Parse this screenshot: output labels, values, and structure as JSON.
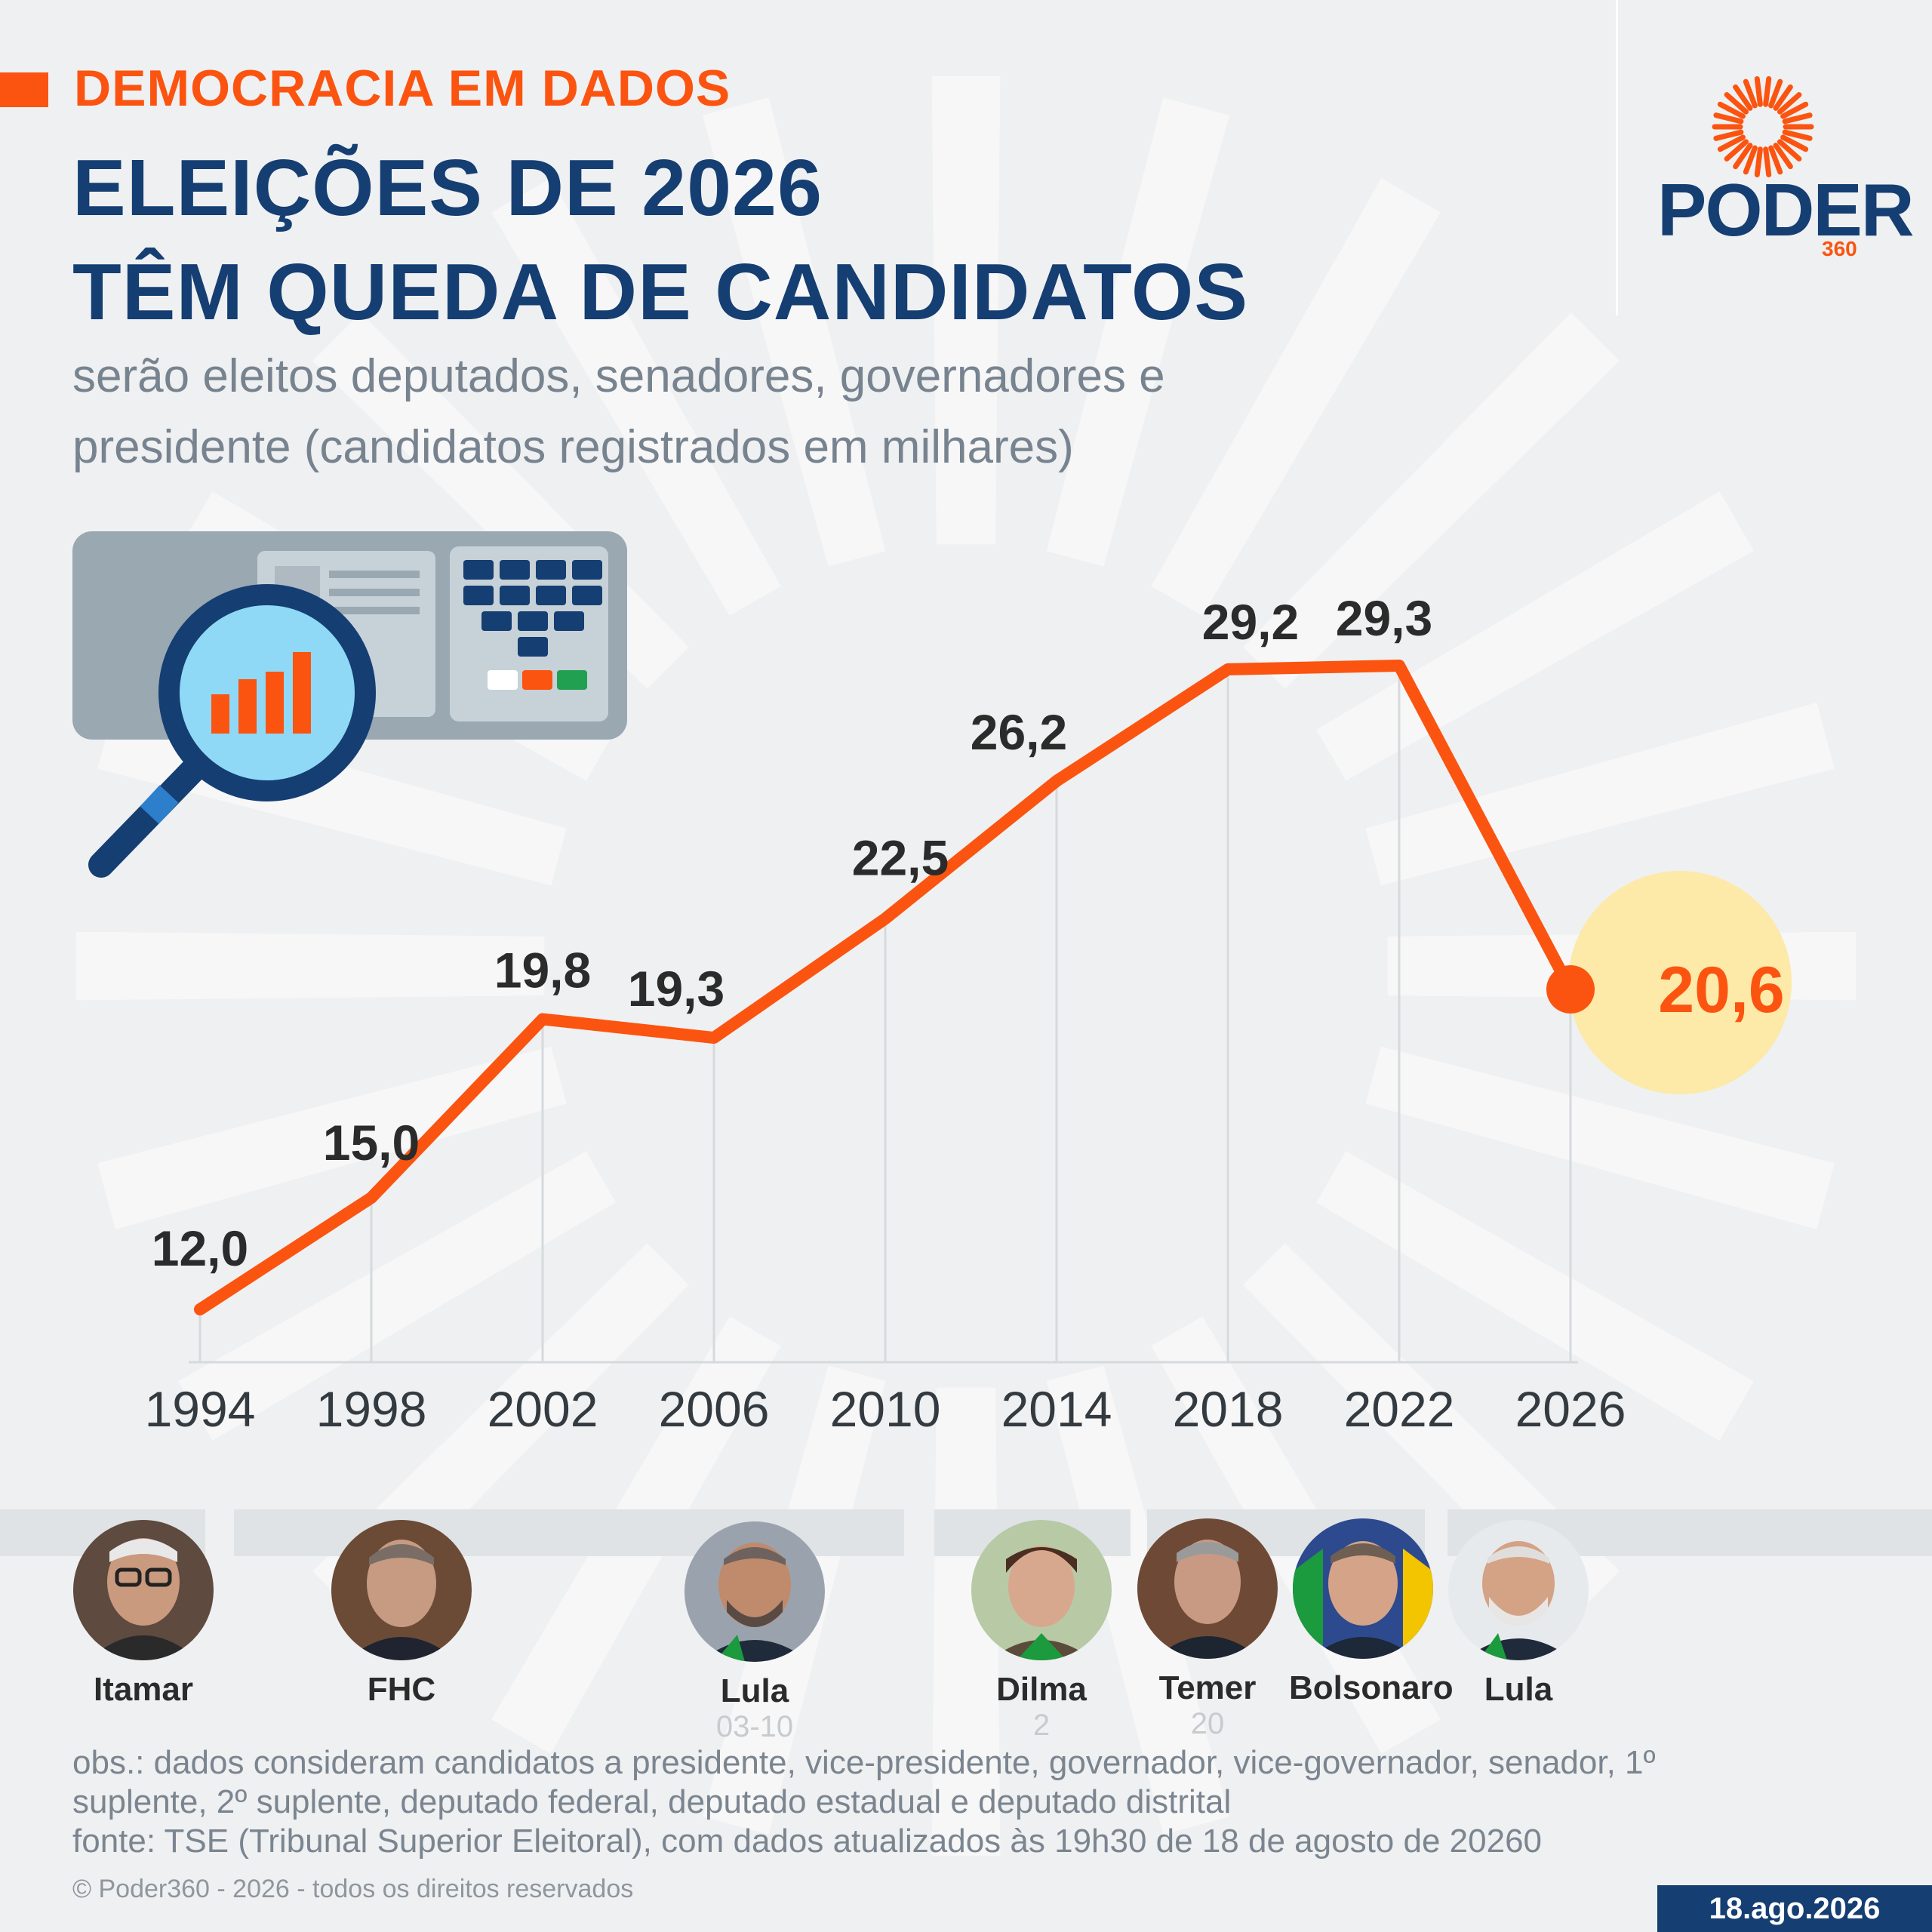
{
  "header": {
    "kicker": "DEMOCRACIA EM DADOS",
    "title_line1": "ELEIÇÕES DE 2026",
    "title_line2": "TÊM QUEDA DE CANDIDATOS",
    "subtitle_line1": "serão eleitos deputados, senadores, governadores e",
    "subtitle_line2": "presidente (candidatos registrados em milhares)"
  },
  "logo": {
    "name": "PODER",
    "sub": "360"
  },
  "chart_data": {
    "type": "line",
    "title": "ELEIÇÕES DE 2026 TÊM QUEDA DE CANDIDATOS",
    "subtitle": "serão eleitos deputados, senadores, governadores e presidente (candidatos registrados em milhares)",
    "categories": [
      "1994",
      "1998",
      "2002",
      "2006",
      "2010",
      "2014",
      "2018",
      "2022",
      "2026"
    ],
    "values": [
      12.0,
      15.0,
      19.8,
      19.3,
      22.5,
      26.2,
      29.2,
      29.3,
      20.6
    ],
    "value_labels": [
      "12,0",
      "15,0",
      "19,8",
      "19,3",
      "22,5",
      "26,2",
      "29,2",
      "29,3",
      "20,6"
    ],
    "highlight_index": 8,
    "xlabel": "",
    "ylabel": "",
    "grid": "vertical",
    "line_color": "#fb5410",
    "highlight_color": "#fde9a8"
  },
  "presidents": [
    {
      "name": "Itamar",
      "ghost": ""
    },
    {
      "name": "FHC",
      "ghost": ""
    },
    {
      "name": "Lula",
      "ghost": "03-10"
    },
    {
      "name": "Dilma",
      "ghost": "2"
    },
    {
      "name": "Temer",
      "ghost": "20"
    },
    {
      "name": "Bolsonaro",
      "ghost": ""
    },
    {
      "name": "Lula",
      "ghost": ""
    }
  ],
  "footer": {
    "obs_line1": "obs.: dados consideram candidatos a presidente, vice-presidente, governador, vice-governador, senador, 1º",
    "obs_line2": "suplente, 2º suplente, deputado federal, deputado estadual e deputado distrital",
    "source": "fonte: TSE (Tribunal Superior Eleitoral), com dados atualizados às 19h30 de 18 de agosto de 20260",
    "copyright": "© Poder360 - 2026 - todos os direitos reservados",
    "date": "18.ago.2026"
  },
  "colors": {
    "orange": "#fb5410",
    "navy": "#153e72",
    "grey_text": "#77838f",
    "background": "#eff0f1"
  },
  "icons": {
    "illustration": "voting-machine-magnifier-icon",
    "logo": "sun-rays-icon"
  }
}
